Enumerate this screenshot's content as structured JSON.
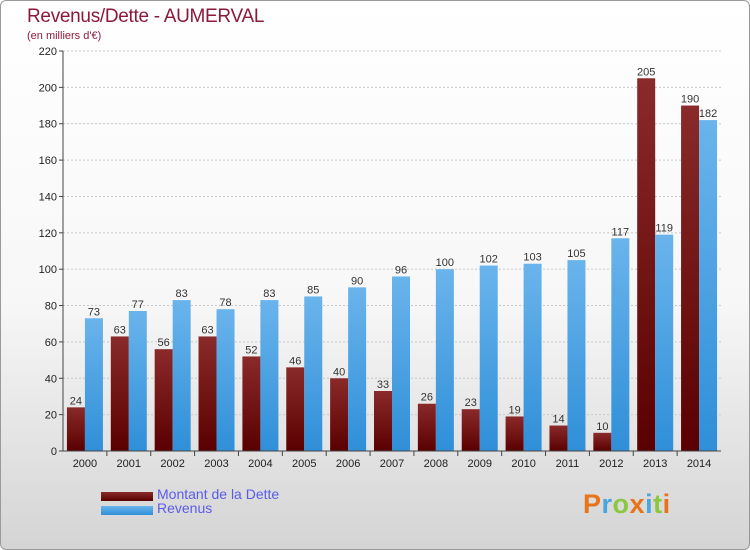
{
  "title": "Revenus/Dette - AUMERVAL",
  "subtitle": "(en milliers d'€)",
  "colors": {
    "debt_top": "#8a2a2a",
    "debt_bottom": "#5a0000",
    "rev_top": "#6ab4ec",
    "rev_bottom": "#2f8fd8",
    "title": "#8b1a3a",
    "legend_text": "#5b5bea"
  },
  "legend": {
    "debt": "Montant de la Dette",
    "revenue": "Revenus"
  },
  "logo": {
    "text": "Proxiti",
    "letter_colors": [
      "#e8731a",
      "#4aa6dc",
      "#8dc63f",
      "#e8731a",
      "#4aa6dc",
      "#8dc63f",
      "#e8731a"
    ]
  },
  "chart_data": {
    "type": "bar",
    "categories": [
      "2000",
      "2001",
      "2002",
      "2003",
      "2004",
      "2005",
      "2006",
      "2007",
      "2008",
      "2009",
      "2010",
      "2011",
      "2012",
      "2013",
      "2014"
    ],
    "series": [
      {
        "name": "Montant de la Dette",
        "values": [
          24,
          63,
          56,
          63,
          52,
          46,
          40,
          33,
          26,
          23,
          19,
          14,
          10,
          205,
          190
        ]
      },
      {
        "name": "Revenus",
        "values": [
          73,
          77,
          83,
          78,
          83,
          85,
          90,
          96,
          100,
          102,
          103,
          105,
          117,
          119,
          182
        ]
      }
    ],
    "ylim": [
      0,
      220
    ],
    "yticks": [
      0,
      20,
      40,
      60,
      80,
      100,
      120,
      140,
      160,
      180,
      200,
      220
    ],
    "grid": "horizontal",
    "legend_position": "bottom-left"
  }
}
